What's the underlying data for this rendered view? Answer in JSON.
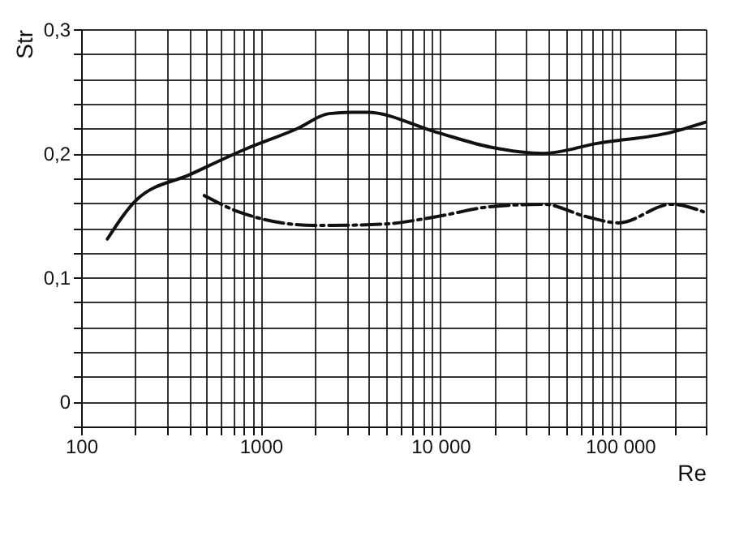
{
  "chart_data": {
    "type": "line",
    "xlabel": "Re",
    "ylabel": "Str",
    "log": "x",
    "xlim": [
      100,
      300000
    ],
    "ylim": [
      -0.02,
      0.3
    ],
    "xticks": [
      100,
      {
        "value": 200,
        "label": null
      },
      {
        "value": 300,
        "label": null
      },
      {
        "value": 400,
        "label": null
      },
      {
        "value": 500,
        "label": null
      },
      {
        "value": 600,
        "label": null
      },
      {
        "value": 700,
        "label": null
      },
      {
        "value": 800,
        "label": null
      },
      {
        "value": 900,
        "label": null
      },
      1000,
      {
        "value": 2000,
        "label": null
      },
      {
        "value": 3000,
        "label": null
      },
      {
        "value": 4000,
        "label": null
      },
      {
        "value": 5000,
        "label": null
      },
      {
        "value": 6000,
        "label": null
      },
      {
        "value": 7000,
        "label": null
      },
      {
        "value": 8000,
        "label": null
      },
      {
        "value": 9000,
        "label": null
      },
      {
        "value": 10000,
        "label": "10 000"
      },
      {
        "value": 20000,
        "label": null
      },
      {
        "value": 30000,
        "label": null
      },
      {
        "value": 40000,
        "label": null
      },
      {
        "value": 50000,
        "label": null
      },
      {
        "value": 60000,
        "label": null
      },
      {
        "value": 70000,
        "label": null
      },
      {
        "value": 80000,
        "label": null
      },
      {
        "value": 90000,
        "label": null
      },
      {
        "value": 100000,
        "label": "100 000"
      },
      {
        "value": 200000,
        "label": null
      },
      {
        "value": 300000,
        "label": null
      }
    ],
    "yticks": [
      {
        "value": -0.02,
        "label": null
      },
      0,
      {
        "value": 0.02,
        "label": null
      },
      {
        "value": 0.04,
        "label": null
      },
      {
        "value": 0.06,
        "label": null
      },
      {
        "value": 0.08,
        "label": null
      },
      {
        "value": 0.1,
        "label": "0,1"
      },
      {
        "value": 0.12,
        "label": null
      },
      {
        "value": 0.14,
        "label": null
      },
      {
        "value": 0.16,
        "label": null
      },
      {
        "value": 0.18,
        "label": null
      },
      {
        "value": 0.2,
        "label": "0,2"
      },
      {
        "value": 0.22,
        "label": null
      },
      {
        "value": 0.24,
        "label": null
      },
      {
        "value": 0.26,
        "label": null
      },
      {
        "value": 0.28,
        "label": null
      },
      {
        "value": 0.3,
        "label": "0,3"
      }
    ],
    "grid": true,
    "marker": "none",
    "series": [
      {
        "color": "#111111",
        "line_style": "solid",
        "x": [
          140,
          205,
          405,
          810,
          1600,
          2400,
          3200,
          3900,
          9500,
          19000,
          37500,
          74500,
          193000,
          297000
        ],
        "values": [
          0.131,
          0.163,
          0.183,
          0.203,
          0.22,
          0.232,
          0.233,
          0.233,
          0.217,
          0.205,
          0.2,
          0.208,
          0.217,
          0.225
        ]
      },
      {
        "color": "#111111",
        "line_style": "dashed",
        "x": [
          485,
          750,
          1970,
          2400,
          4800,
          9500,
          19000,
          37500,
          65000,
          98000,
          193000,
          291000
        ],
        "values": [
          0.166,
          0.153,
          0.142,
          0.142,
          0.143,
          0.149,
          0.157,
          0.159,
          0.149,
          0.144,
          0.159,
          0.153
        ]
      }
    ]
  }
}
